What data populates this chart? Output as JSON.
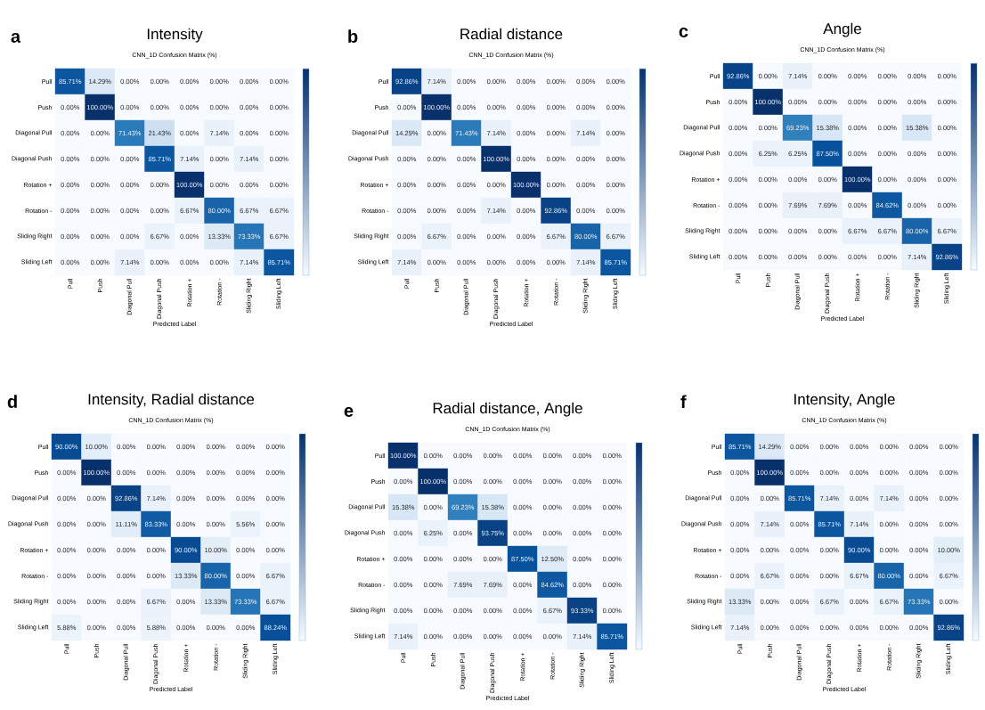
{
  "chart_data": [
    {
      "type": "heatmap",
      "title": "Intensity",
      "subtitle": "CNN_1D Confusion Matrix (%)",
      "xlabel": "Predicted Label",
      "annotations": [
        "a"
      ],
      "categories": [
        "Pull",
        "Push",
        "Diagonal Pull",
        "Diagonal Push",
        "Rotation +",
        "Rotation -",
        "Sliding Right",
        "Sliding Left"
      ],
      "y_categories": [
        "Pull",
        "Push",
        "Diagonal Pull",
        "Diagonal Push",
        "Rotation +",
        "Rotation -",
        "Sliding Right",
        "Sliding Left"
      ],
      "cells": [
        [
          85.71,
          14.29,
          0,
          0,
          0,
          0,
          0,
          0
        ],
        [
          0,
          100,
          0,
          0,
          0,
          0,
          0,
          0
        ],
        [
          0,
          0,
          71.43,
          21.43,
          0,
          7.14,
          0,
          0
        ],
        [
          0,
          0,
          0,
          85.71,
          7.14,
          0,
          7.14,
          0
        ],
        [
          0,
          0,
          0,
          0,
          100,
          0,
          0,
          0
        ],
        [
          0,
          0,
          0,
          0,
          6.67,
          80,
          6.67,
          6.67
        ],
        [
          0,
          0,
          0,
          6.67,
          0,
          13.33,
          73.33,
          6.67
        ],
        [
          0,
          0,
          7.14,
          0,
          0,
          0,
          7.14,
          85.71
        ]
      ],
      "cell_labels": [
        [
          "85.71%",
          "14.29%",
          "0.00%",
          "0.00%",
          "0.00%",
          "0.00%",
          "0.00%",
          "0.00%"
        ],
        [
          "0.00%",
          "100.00%",
          "0.00%",
          "0.00%",
          "0.00%",
          "0.00%",
          "0.00%",
          "0.00%"
        ],
        [
          "0.00%",
          "0.00%",
          "71.43%",
          "21.43%",
          "0.00%",
          "7.14%",
          "0.00%",
          "0.00%"
        ],
        [
          "0.00%",
          "0.00%",
          "0.00%",
          "85.71%",
          "7.14%",
          "0.00%",
          "7.14%",
          "0.00%"
        ],
        [
          "0.00%",
          "0.00%",
          "0.00%",
          "0.00%",
          "100.00%",
          "0.00%",
          "0.00%",
          "0.00%"
        ],
        [
          "0.00%",
          "0.00%",
          "0.00%",
          "0.00%",
          "6.67%",
          "80.00%",
          "6.67%",
          "6.67%"
        ],
        [
          "0.00%",
          "0.00%",
          "0.00%",
          "6.67%",
          "0.00%",
          "13.33%",
          "73.33%",
          "6.67%"
        ],
        [
          "0.00%",
          "0.00%",
          "7.14%",
          "0.00%",
          "0.00%",
          "0.00%",
          "7.14%",
          "85.71%"
        ]
      ]
    },
    {
      "type": "heatmap",
      "title": "Radial distance",
      "subtitle": "CNN_1D Confusion Matrix (%)",
      "xlabel": "Predicted Label",
      "annotations": [
        "b"
      ],
      "categories": [
        "Pull",
        "Push",
        "Diagonal Pull",
        "Diagonal Push",
        "Rotation +",
        "Rotation -",
        "Sliding Right",
        "Sliding Left"
      ],
      "y_categories": [
        "Pull",
        "Push",
        "Diagonal Pull",
        "Diagonal Push",
        "Rotation +",
        "Rotation -",
        "Sliding Right",
        "Sliding Left"
      ],
      "cells": [
        [
          92.86,
          7.14,
          0,
          0,
          0,
          0,
          0,
          0
        ],
        [
          0,
          100,
          0,
          0,
          0,
          0,
          0,
          0
        ],
        [
          14.29,
          0,
          71.43,
          7.14,
          0,
          0,
          7.14,
          0
        ],
        [
          0,
          0,
          0,
          100,
          0,
          0,
          0,
          0
        ],
        [
          0,
          0,
          0,
          0,
          100,
          0,
          0,
          0
        ],
        [
          0,
          0,
          0,
          7.14,
          0,
          92.86,
          0,
          0
        ],
        [
          0,
          6.67,
          0,
          0,
          0,
          6.67,
          80,
          6.67
        ],
        [
          7.14,
          0,
          0,
          0,
          0,
          0,
          7.14,
          85.71
        ]
      ],
      "cell_labels": [
        [
          "92.86%",
          "7.14%",
          "0.00%",
          "0.00%",
          "0.00%",
          "0.00%",
          "0.00%",
          "0.00%"
        ],
        [
          "0.00%",
          "100.00%",
          "0.00%",
          "0.00%",
          "0.00%",
          "0.00%",
          "0.00%",
          "0.00%"
        ],
        [
          "14.29%",
          "0.00%",
          "71.43%",
          "7.14%",
          "0.00%",
          "0.00%",
          "7.14%",
          "0.00%"
        ],
        [
          "0.00%",
          "0.00%",
          "0.00%",
          "100.00%",
          "0.00%",
          "0.00%",
          "0.00%",
          "0.00%"
        ],
        [
          "0.00%",
          "0.00%",
          "0.00%",
          "0.00%",
          "100.00%",
          "0.00%",
          "0.00%",
          "0.00%"
        ],
        [
          "0.00%",
          "0.00%",
          "0.00%",
          "7.14%",
          "0.00%",
          "92.86%",
          "0.00%",
          "0.00%"
        ],
        [
          "0.00%",
          "6.67%",
          "0.00%",
          "0.00%",
          "0.00%",
          "6.67%",
          "80.00%",
          "6.67%"
        ],
        [
          "7.14%",
          "0.00%",
          "0.00%",
          "0.00%",
          "0.00%",
          "0.00%",
          "7.14%",
          "85.71%"
        ]
      ]
    },
    {
      "type": "heatmap",
      "title": "Angle",
      "subtitle": "CNN_1D Confusion Matrix (%)",
      "xlabel": "Predicted Label",
      "annotations": [
        "c"
      ],
      "categories": [
        "Pull",
        "Push",
        "Diagonal Pull",
        "Diagonal Push",
        "Rotation +",
        "Rotation -",
        "Sliding Right",
        "Sliding Left"
      ],
      "y_categories": [
        "Pull",
        "Push",
        "Diagonal Pull",
        "Diagonal Push",
        "Rotation +",
        "Rotation -",
        "Sliding Right",
        "Sliding Left"
      ],
      "cells": [
        [
          92.86,
          0,
          7.14,
          0,
          0,
          0,
          0,
          0
        ],
        [
          0,
          100,
          0,
          0,
          0,
          0,
          0,
          0
        ],
        [
          0,
          0,
          69.23,
          15.38,
          0,
          0,
          15.38,
          0
        ],
        [
          0,
          6.25,
          6.25,
          87.5,
          0,
          0,
          0,
          0
        ],
        [
          0,
          0,
          0,
          0,
          100,
          0,
          0,
          0
        ],
        [
          0,
          0,
          7.69,
          7.69,
          0,
          84.62,
          0,
          0
        ],
        [
          0,
          0,
          0,
          0,
          6.67,
          6.67,
          80,
          6.67
        ],
        [
          0,
          0,
          0,
          0,
          0,
          0,
          7.14,
          92.86
        ]
      ],
      "cell_labels": [
        [
          "92.86%",
          "0.00%",
          "7.14%",
          "0.00%",
          "0.00%",
          "0.00%",
          "0.00%",
          "0.00%"
        ],
        [
          "0.00%",
          "100.00%",
          "0.00%",
          "0.00%",
          "0.00%",
          "0.00%",
          "0.00%",
          "0.00%"
        ],
        [
          "0.00%",
          "0.00%",
          "69.23%",
          "15.38%",
          "0.00%",
          "0.00%",
          "15.38%",
          "0.00%"
        ],
        [
          "0.00%",
          "6.25%",
          "6.25%",
          "87.50%",
          "0.00%",
          "0.00%",
          "0.00%",
          "0.00%"
        ],
        [
          "0.00%",
          "0.00%",
          "0.00%",
          "0.00%",
          "100.00%",
          "0.00%",
          "0.00%",
          "0.00%"
        ],
        [
          "0.00%",
          "0.00%",
          "7.69%",
          "7.69%",
          "0.00%",
          "84.62%",
          "0.00%",
          "0.00%"
        ],
        [
          "0.00%",
          "0.00%",
          "0.00%",
          "0.00%",
          "6.67%",
          "6.67%",
          "80.00%",
          "6.67%"
        ],
        [
          "0.00%",
          "0.00%",
          "0.00%",
          "0.00%",
          "0.00%",
          "0.00%",
          "7.14%",
          "92.86%"
        ]
      ]
    },
    {
      "type": "heatmap",
      "title": "Intensity, Radial distance",
      "subtitle": "CNN_1D Confusion Matrix (%)",
      "xlabel": "Predicted Label",
      "annotations": [
        "d"
      ],
      "categories": [
        "Pull",
        "Push",
        "Diagonal Pull",
        "Diagonal Push",
        "Rotation +",
        "Rotation -",
        "Sliding Right",
        "Sliding Left"
      ],
      "y_categories": [
        "Pull",
        "Push",
        "Diagonal Pull",
        "Diagonal Push",
        "Rotation +",
        "Rotation -",
        "Sliding Right",
        "Sliding Left"
      ],
      "cells": [
        [
          90,
          10,
          0,
          0,
          0,
          0,
          0,
          0
        ],
        [
          0,
          100,
          0,
          0,
          0,
          0,
          0,
          0
        ],
        [
          0,
          0,
          92.86,
          7.14,
          0,
          0,
          0,
          0
        ],
        [
          0,
          0,
          11.11,
          83.33,
          0,
          0,
          5.56,
          0
        ],
        [
          0,
          0,
          0,
          0,
          90,
          10,
          0,
          0
        ],
        [
          0,
          0,
          0,
          0,
          13.33,
          80,
          0,
          6.67
        ],
        [
          0,
          0,
          0,
          6.67,
          0,
          13.33,
          73.33,
          6.67
        ],
        [
          5.88,
          0,
          0,
          5.88,
          0,
          0,
          0,
          88.24
        ]
      ],
      "cell_labels": [
        [
          "90.00%",
          "10.00%",
          "0.00%",
          "0.00%",
          "0.00%",
          "0.00%",
          "0.00%",
          "0.00%"
        ],
        [
          "0.00%",
          "100.00%",
          "0.00%",
          "0.00%",
          "0.00%",
          "0.00%",
          "0.00%",
          "0.00%"
        ],
        [
          "0.00%",
          "0.00%",
          "92.86%",
          "7.14%",
          "0.00%",
          "0.00%",
          "0.00%",
          "0.00%"
        ],
        [
          "0.00%",
          "0.00%",
          "11.11%",
          "83.33%",
          "0.00%",
          "0.00%",
          "5.56%",
          "0.00%"
        ],
        [
          "0.00%",
          "0.00%",
          "0.00%",
          "0.00%",
          "90.00%",
          "10.00%",
          "0.00%",
          "0.00%"
        ],
        [
          "0.00%",
          "0.00%",
          "0.00%",
          "0.00%",
          "13.33%",
          "80.00%",
          "0.00%",
          "6.67%"
        ],
        [
          "0.00%",
          "0.00%",
          "0.00%",
          "6.67%",
          "0.00%",
          "13.33%",
          "73.33%",
          "6.67%"
        ],
        [
          "5.88%",
          "0.00%",
          "0.00%",
          "5.88%",
          "0.00%",
          "0.00%",
          "0.00%",
          "88.24%"
        ]
      ]
    },
    {
      "type": "heatmap",
      "title": "Radial distance, Angle",
      "subtitle": "CNN_1D Confusion Matrix (%)",
      "xlabel": "Predicted Label",
      "annotations": [
        "e"
      ],
      "categories": [
        "Pull",
        "Push",
        "Diagonal Pull",
        "Diagonal Push",
        "Rotation +",
        "Rotation -",
        "Sliding Right",
        "Sliding Left"
      ],
      "y_categories": [
        "Pull",
        "Push",
        "Diagonal Pull",
        "Diagonal Push",
        "Rotation +",
        "Rotation -",
        "Sliding Right",
        "Sliding Left"
      ],
      "cells": [
        [
          100,
          0,
          0,
          0,
          0,
          0,
          0,
          0
        ],
        [
          0,
          100,
          0,
          0,
          0,
          0,
          0,
          0
        ],
        [
          15.38,
          0,
          69.23,
          15.38,
          0,
          0,
          0,
          0
        ],
        [
          0,
          6.25,
          0,
          93.75,
          0,
          0,
          0,
          0
        ],
        [
          0,
          0,
          0,
          0,
          87.5,
          12.5,
          0,
          0
        ],
        [
          0,
          0,
          7.69,
          7.69,
          0,
          84.62,
          0,
          0
        ],
        [
          0,
          0,
          0,
          0,
          0,
          6.67,
          93.33,
          0
        ],
        [
          7.14,
          0,
          0,
          0,
          0,
          0,
          7.14,
          85.71
        ]
      ],
      "cell_labels": [
        [
          "100.00%",
          "0.00%",
          "0.00%",
          "0.00%",
          "0.00%",
          "0.00%",
          "0.00%",
          "0.00%"
        ],
        [
          "0.00%",
          "100.00%",
          "0.00%",
          "0.00%",
          "0.00%",
          "0.00%",
          "0.00%",
          "0.00%"
        ],
        [
          "15.38%",
          "0.00%",
          "69.23%",
          "15.38%",
          "0.00%",
          "0.00%",
          "0.00%",
          "0.00%"
        ],
        [
          "0.00%",
          "6.25%",
          "0.00%",
          "93.75%",
          "0.00%",
          "0.00%",
          "0.00%",
          "0.00%"
        ],
        [
          "0.00%",
          "0.00%",
          "0.00%",
          "0.00%",
          "87.50%",
          "12.50%",
          "0.00%",
          "0.00%"
        ],
        [
          "0.00%",
          "0.00%",
          "7.69%",
          "7.69%",
          "0.00%",
          "84.62%",
          "0.00%",
          "0.00%"
        ],
        [
          "0.00%",
          "0.00%",
          "0.00%",
          "0.00%",
          "0.00%",
          "6.67%",
          "93.33%",
          "0.00%"
        ],
        [
          "7.14%",
          "0.00%",
          "0.00%",
          "0.00%",
          "0.00%",
          "0.00%",
          "7.14%",
          "85.71%"
        ]
      ]
    },
    {
      "type": "heatmap",
      "title": "Intensity, Angle",
      "subtitle": "CNN_1D Confusion Matrix (%)",
      "xlabel": "Predicted Label",
      "annotations": [
        "f"
      ],
      "categories": [
        "Pull",
        "Push",
        "Diagonal Pull",
        "Diagonal Push",
        "Rotation +",
        "Rotation -",
        "Sliding Right",
        "Sliding Left"
      ],
      "y_categories": [
        "Pull",
        "Push",
        "Diagonal Pull",
        "Diagonal Push",
        "Rotation +",
        "Rotation -",
        "Sliding Right",
        "Sliding Left"
      ],
      "cells": [
        [
          85.71,
          14.29,
          0,
          0,
          0,
          0,
          0,
          0
        ],
        [
          0,
          100,
          0,
          0,
          0,
          0,
          0,
          0
        ],
        [
          0,
          0,
          85.71,
          7.14,
          0,
          7.14,
          0,
          0
        ],
        [
          0,
          7.14,
          0,
          85.71,
          7.14,
          0,
          0,
          0
        ],
        [
          0,
          0,
          0,
          0,
          90,
          0,
          0,
          10
        ],
        [
          0,
          6.67,
          0,
          0,
          6.67,
          80,
          0,
          6.67
        ],
        [
          13.33,
          0,
          0,
          6.67,
          0,
          6.67,
          73.33,
          0
        ],
        [
          7.14,
          0,
          0,
          0,
          0,
          0,
          0,
          92.86
        ]
      ],
      "cell_labels": [
        [
          "85.71%",
          "14.29%",
          "0.00%",
          "0.00%",
          "0.00%",
          "0.00%",
          "0.00%",
          "0.00%"
        ],
        [
          "0.00%",
          "100.00%",
          "0.00%",
          "0.00%",
          "0.00%",
          "0.00%",
          "0.00%",
          "0.00%"
        ],
        [
          "0.00%",
          "0.00%",
          "85.71%",
          "7.14%",
          "0.00%",
          "7.14%",
          "0.00%",
          "0.00%"
        ],
        [
          "0.00%",
          "7.14%",
          "0.00%",
          "85.71%",
          "7.14%",
          "0.00%",
          "0.00%",
          "0.00%"
        ],
        [
          "0.00%",
          "0.00%",
          "0.00%",
          "0.00%",
          "90.00%",
          "0.00%",
          "0.00%",
          "10.00%"
        ],
        [
          "0.00%",
          "6.67%",
          "0.00%",
          "0.00%",
          "6.67%",
          "80.00%",
          "0.00%",
          "6.67%"
        ],
        [
          "13.33%",
          "0.00%",
          "0.00%",
          "6.67%",
          "0.00%",
          "6.67%",
          "73.33%",
          "0.00%"
        ],
        [
          "7.14%",
          "0.00%",
          "0.00%",
          "0.00%",
          "0.00%",
          "0.00%",
          "0.00%",
          "92.86%"
        ]
      ]
    }
  ]
}
